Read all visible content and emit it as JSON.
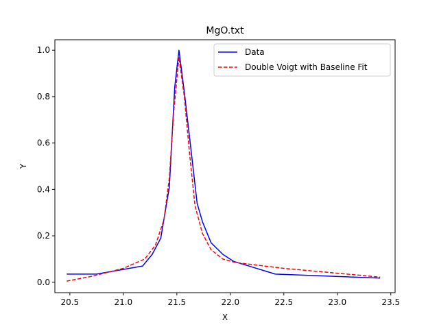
{
  "chart_data": {
    "type": "line",
    "title": "MgO.txt",
    "xlabel": "X",
    "ylabel": "Y",
    "xlim": [
      20.36,
      23.54
    ],
    "ylim": [
      -0.045,
      1.045
    ],
    "xticks": [
      20.5,
      21.0,
      21.5,
      22.0,
      22.5,
      23.0,
      23.5
    ],
    "xtick_labels": [
      "20.5",
      "21.0",
      "21.5",
      "22.0",
      "22.5",
      "23.0",
      "23.5"
    ],
    "yticks": [
      0.0,
      0.2,
      0.4,
      0.6,
      0.8,
      1.0
    ],
    "ytick_labels": [
      "0.0",
      "0.2",
      "0.4",
      "0.6",
      "0.8",
      "1.0"
    ],
    "grid": false,
    "legend_position": "top-right",
    "series": [
      {
        "name": "Data",
        "color": "#0000ff",
        "style": "solid",
        "points": [
          [
            20.47,
            0.035
          ],
          [
            20.75,
            0.035
          ],
          [
            21.18,
            0.07
          ],
          [
            21.27,
            0.12
          ],
          [
            21.35,
            0.19
          ],
          [
            21.43,
            0.41
          ],
          [
            21.48,
            0.84
          ],
          [
            21.52,
            1.0
          ],
          [
            21.57,
            0.82
          ],
          [
            21.63,
            0.58
          ],
          [
            21.69,
            0.34
          ],
          [
            21.74,
            0.26
          ],
          [
            21.82,
            0.17
          ],
          [
            21.93,
            0.12
          ],
          [
            22.03,
            0.09
          ],
          [
            22.42,
            0.035
          ],
          [
            23.4,
            0.018
          ]
        ]
      },
      {
        "name": "Double Voigt with Baseline Fit",
        "color": "#ff0000",
        "style": "dashed",
        "points": [
          [
            20.47,
            0.005
          ],
          [
            20.7,
            0.025
          ],
          [
            21.0,
            0.06
          ],
          [
            21.2,
            0.1
          ],
          [
            21.3,
            0.16
          ],
          [
            21.38,
            0.27
          ],
          [
            21.43,
            0.45
          ],
          [
            21.47,
            0.73
          ],
          [
            21.52,
            0.97
          ],
          [
            21.57,
            0.8
          ],
          [
            21.62,
            0.55
          ],
          [
            21.67,
            0.33
          ],
          [
            21.74,
            0.21
          ],
          [
            21.82,
            0.14
          ],
          [
            21.93,
            0.1
          ],
          [
            22.05,
            0.085
          ],
          [
            22.5,
            0.06
          ],
          [
            23.4,
            0.022
          ]
        ]
      }
    ]
  }
}
